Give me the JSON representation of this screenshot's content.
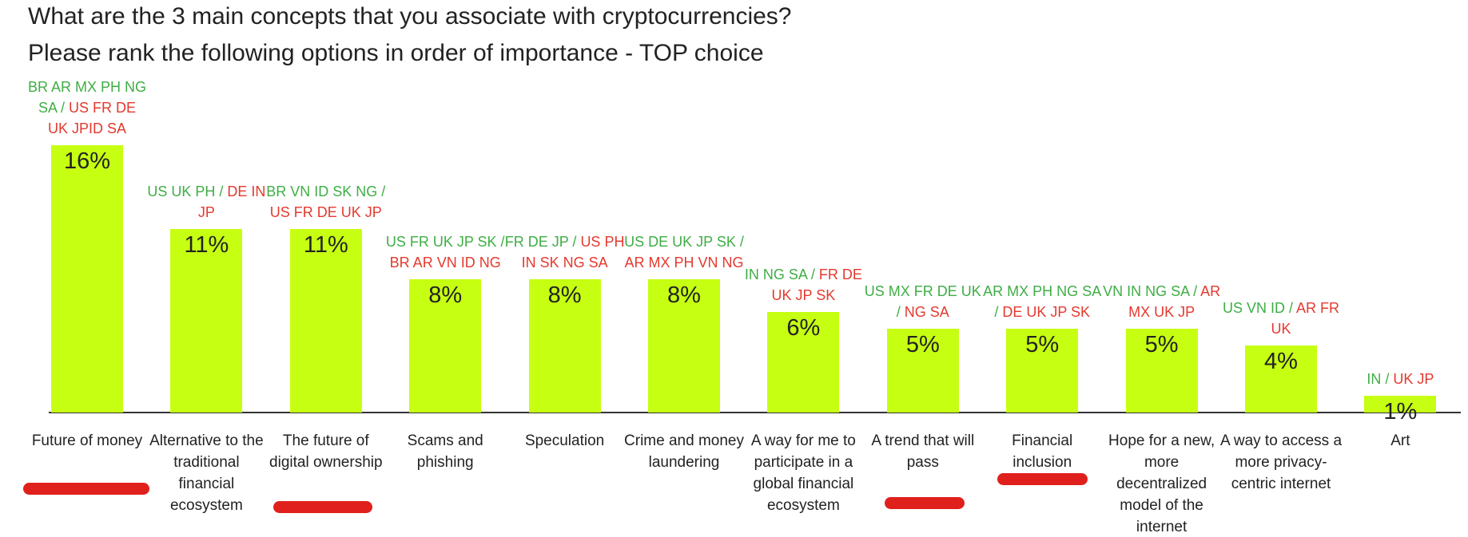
{
  "chart_data": {
    "type": "bar",
    "title": "What are the 3 main concepts that you associate with cryptocurrencies?",
    "subtitle": "Please rank the following options in order of importance - TOP choice",
    "categories": [
      "Future of money",
      "Alternative to the traditional financial ecosystem",
      "The future of digital ownership",
      "Scams and phishing",
      "Speculation",
      "Crime and money laundering",
      "A way for me to participate in a global financial ecosystem",
      "A trend that will pass",
      "Financial inclusion",
      "Hope for a new, more decentralized model of the internet",
      "A way to access a more privacy-centric internet",
      "Art"
    ],
    "values": [
      16,
      11,
      11,
      8,
      8,
      8,
      6,
      5,
      5,
      5,
      4,
      1
    ],
    "value_labels": [
      "16%",
      "11%",
      "11%",
      "8%",
      "8%",
      "8%",
      "6%",
      "5%",
      "5%",
      "5%",
      "4%",
      "1%"
    ],
    "color": "#c6ff12",
    "annotation_colors": {
      "positive": "#3fae45",
      "negative": "#e4392e"
    },
    "annotations": [
      {
        "positive": "BR AR MX PH NG SA /",
        "negative": "US FR DE UK JPID SA"
      },
      {
        "positive": "US UK PH /",
        "negative": "DE IN JP"
      },
      {
        "positive": "BR VN ID SK NG /",
        "negative": "US FR DE UK JP"
      },
      {
        "positive": "US FR UK JP SK /",
        "negative": "BR AR VN ID NG"
      },
      {
        "positive": "FR DE JP /",
        "negative": "US PH IN SK NG SA"
      },
      {
        "positive": "US DE UK JP SK /",
        "negative": "AR MX PH VN NG"
      },
      {
        "positive": "IN NG SA /",
        "negative": "FR DE UK JP SK"
      },
      {
        "positive": "US MX FR DE UK /",
        "negative": "NG SA"
      },
      {
        "positive": "AR MX PH NG SA /",
        "negative": "DE UK JP SK"
      },
      {
        "positive": "VN IN NG SA /",
        "negative": "AR MX UK JP"
      },
      {
        "positive": "US VN ID /",
        "negative": "AR FR UK"
      },
      {
        "positive": "IN /",
        "negative": "UK JP"
      }
    ]
  }
}
